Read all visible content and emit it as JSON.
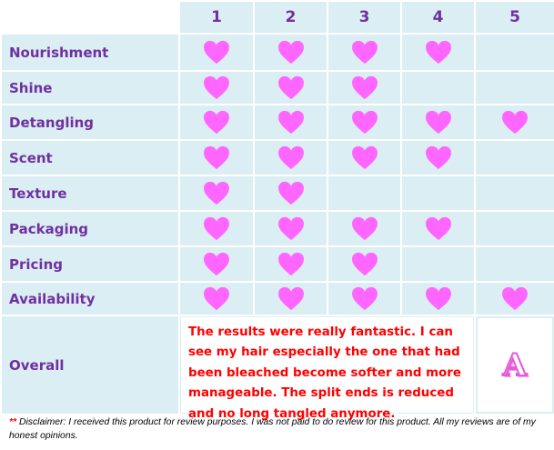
{
  "columns": [
    "1",
    "2",
    "3",
    "4",
    "5"
  ],
  "rows": [
    {
      "label": "Nourishment",
      "rating": 4
    },
    {
      "label": "Shine",
      "rating": 3
    },
    {
      "label": "Detangling",
      "rating": 5
    },
    {
      "label": "Scent",
      "rating": 4
    },
    {
      "label": "Texture",
      "rating": 2
    },
    {
      "label": "Packaging",
      "rating": 4
    },
    {
      "label": "Pricing",
      "rating": 3
    },
    {
      "label": "Availability",
      "rating": 5
    }
  ],
  "overall": {
    "label": "Overall",
    "comment": "The results were really fantastic. I can see my hair especially the one that had been bleached become softer and more manageable. The split ends is reduced and no long tangled anymore.",
    "grade": "A"
  },
  "disclaimer": {
    "stars": "**",
    "text": " Disclaimer: I received this product for review purposes. I was not paid to do review for this product.  All my reviews are of my honest opinions."
  },
  "colors": {
    "cell": "#dbeef4",
    "label": "#7030a0",
    "heart": "#ff66ff",
    "comment": "#ff0000"
  },
  "icons": {
    "rating": "heart-icon"
  }
}
